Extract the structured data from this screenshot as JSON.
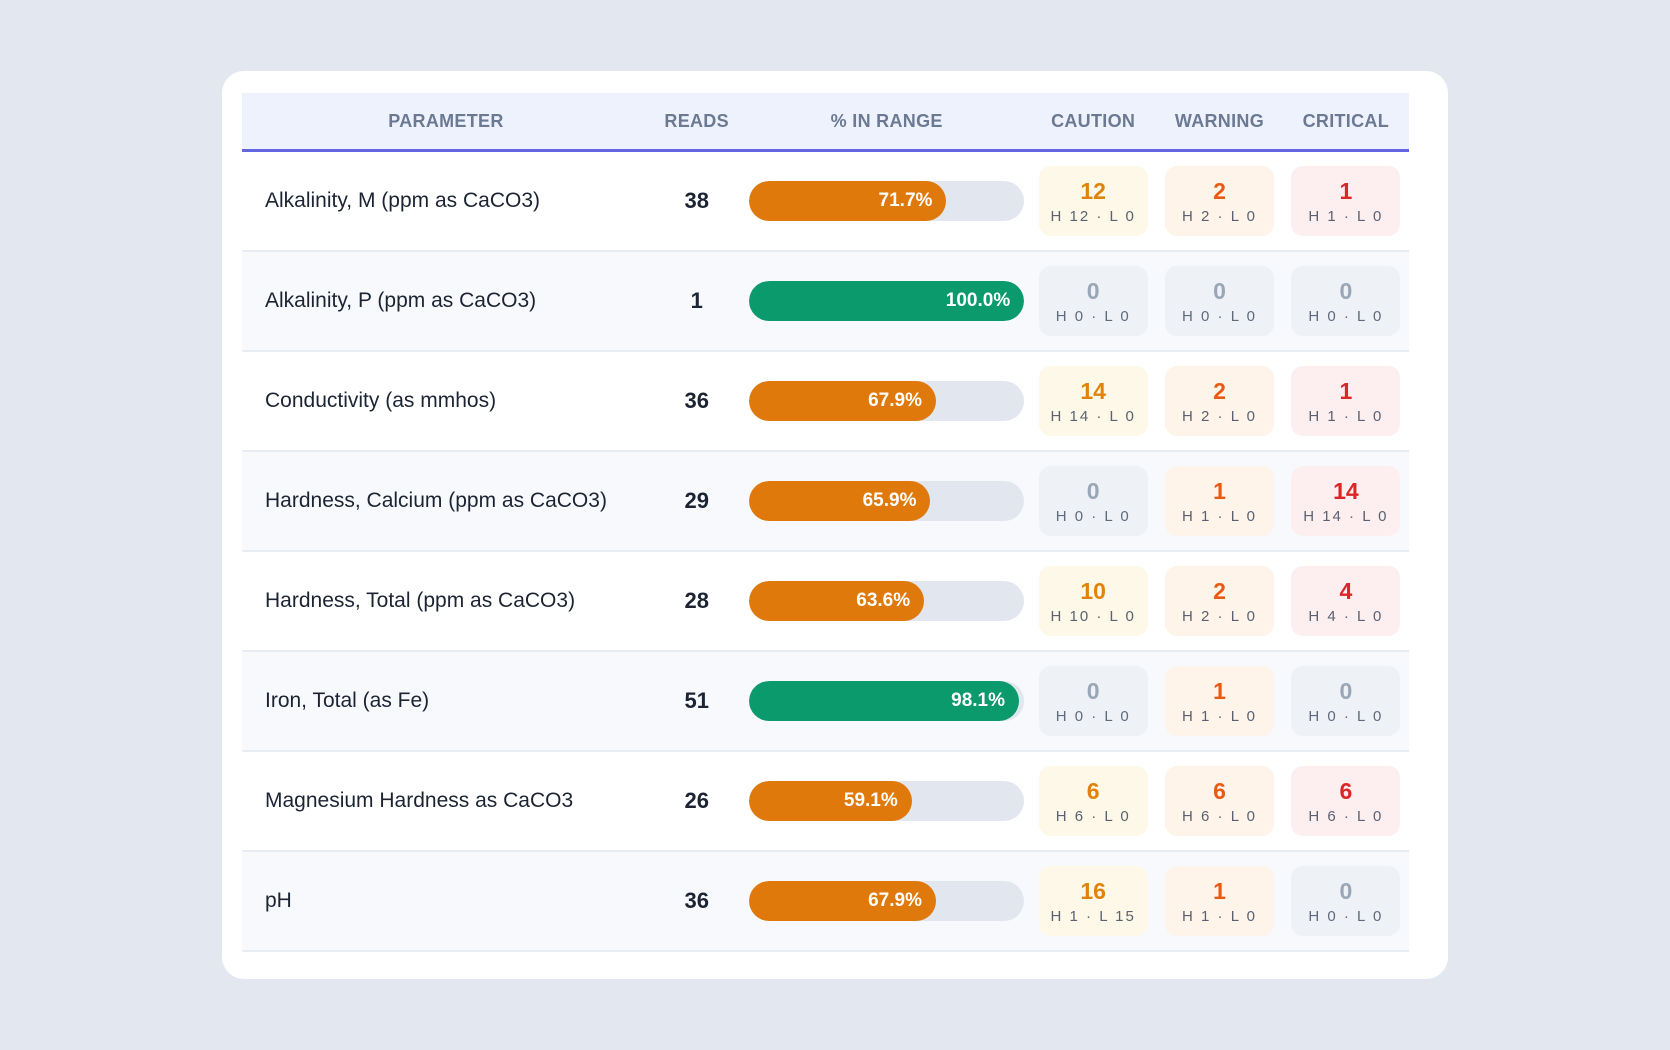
{
  "headers": {
    "parameter": "PARAMETER",
    "reads": "READS",
    "in_range": "% IN RANGE",
    "caution": "CAUTION",
    "warning": "WARNING",
    "critical": "CRITICAL"
  },
  "colors": {
    "bar_good": "#0a9a6b",
    "bar_caution": "#e0790b",
    "bar_track": "#e2e7ef",
    "header_accent": "#6366e0"
  },
  "rows": [
    {
      "parameter": "Alkalinity, M (ppm as CaCO3)",
      "reads": "38",
      "in_range_pct": 71.7,
      "in_range_label": "71.7%",
      "status": "caution",
      "caution": {
        "count": "12",
        "detail": "H 12 · L 0",
        "level": "caution"
      },
      "warning": {
        "count": "2",
        "detail": "H 2 · L 0",
        "level": "warning"
      },
      "critical": {
        "count": "1",
        "detail": "H 1 · L 0",
        "level": "critical"
      }
    },
    {
      "parameter": "Alkalinity, P (ppm as CaCO3)",
      "reads": "1",
      "in_range_pct": 100.0,
      "in_range_label": "100.0%",
      "status": "good",
      "caution": {
        "count": "0",
        "detail": "H 0 · L 0",
        "level": "neutral"
      },
      "warning": {
        "count": "0",
        "detail": "H 0 · L 0",
        "level": "neutral"
      },
      "critical": {
        "count": "0",
        "detail": "H 0 · L 0",
        "level": "neutral"
      }
    },
    {
      "parameter": "Conductivity (as mmhos)",
      "reads": "36",
      "in_range_pct": 67.9,
      "in_range_label": "67.9%",
      "status": "caution",
      "caution": {
        "count": "14",
        "detail": "H 14 · L 0",
        "level": "caution"
      },
      "warning": {
        "count": "2",
        "detail": "H 2 · L 0",
        "level": "warning"
      },
      "critical": {
        "count": "1",
        "detail": "H 1 · L 0",
        "level": "critical"
      }
    },
    {
      "parameter": "Hardness, Calcium (ppm as CaCO3)",
      "reads": "29",
      "in_range_pct": 65.9,
      "in_range_label": "65.9%",
      "status": "caution",
      "caution": {
        "count": "0",
        "detail": "H 0 · L 0",
        "level": "neutral"
      },
      "warning": {
        "count": "1",
        "detail": "H 1 · L 0",
        "level": "warning"
      },
      "critical": {
        "count": "14",
        "detail": "H 14 · L 0",
        "level": "critical"
      }
    },
    {
      "parameter": "Hardness, Total (ppm as CaCO3)",
      "reads": "28",
      "in_range_pct": 63.6,
      "in_range_label": "63.6%",
      "status": "caution",
      "caution": {
        "count": "10",
        "detail": "H 10 · L 0",
        "level": "caution"
      },
      "warning": {
        "count": "2",
        "detail": "H 2 · L 0",
        "level": "warning"
      },
      "critical": {
        "count": "4",
        "detail": "H 4 · L 0",
        "level": "critical"
      }
    },
    {
      "parameter": "Iron, Total (as Fe)",
      "reads": "51",
      "in_range_pct": 98.1,
      "in_range_label": "98.1%",
      "status": "good",
      "caution": {
        "count": "0",
        "detail": "H 0 · L 0",
        "level": "neutral"
      },
      "warning": {
        "count": "1",
        "detail": "H 1 · L 0",
        "level": "warning"
      },
      "critical": {
        "count": "0",
        "detail": "H 0 · L 0",
        "level": "neutral"
      }
    },
    {
      "parameter": "Magnesium Hardness as CaCO3",
      "reads": "26",
      "in_range_pct": 59.1,
      "in_range_label": "59.1%",
      "status": "caution",
      "caution": {
        "count": "6",
        "detail": "H 6 · L 0",
        "level": "caution"
      },
      "warning": {
        "count": "6",
        "detail": "H 6 · L 0",
        "level": "warning"
      },
      "critical": {
        "count": "6",
        "detail": "H 6 · L 0",
        "level": "critical"
      }
    },
    {
      "parameter": "pH",
      "reads": "36",
      "in_range_pct": 67.9,
      "in_range_label": "67.9%",
      "status": "caution",
      "caution": {
        "count": "16",
        "detail": "H 1 · L 15",
        "level": "caution"
      },
      "warning": {
        "count": "1",
        "detail": "H 1 · L 0",
        "level": "warning"
      },
      "critical": {
        "count": "0",
        "detail": "H 0 · L 0",
        "level": "neutral"
      }
    }
  ]
}
